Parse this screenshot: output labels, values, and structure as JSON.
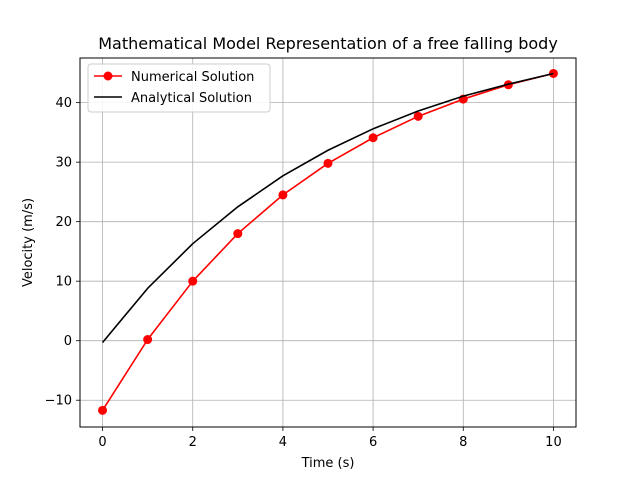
{
  "chart_data": {
    "type": "line",
    "title": "Mathematical Model Representation of a free falling body",
    "xlabel": "Time (s)",
    "ylabel": "Velocity (m/s)",
    "xlim": [
      -0.5,
      10.5
    ],
    "ylim": [
      -14.5,
      47.5
    ],
    "xticks": [
      0,
      2,
      4,
      6,
      8,
      10
    ],
    "yticks": [
      -10,
      0,
      10,
      20,
      30,
      40
    ],
    "xtick_labels": [
      "0",
      "2",
      "4",
      "6",
      "8",
      "10"
    ],
    "ytick_labels": [
      "−10",
      "0",
      "10",
      "20",
      "30",
      "40"
    ],
    "grid": true,
    "legend_position": "top-left",
    "series": [
      {
        "name": "Numerical Solution",
        "color": "#ff0000",
        "marker": "circle",
        "x": [
          0,
          1,
          2,
          3,
          4,
          5,
          6,
          7,
          8,
          9,
          10
        ],
        "y": [
          -11.7,
          0.2,
          10.0,
          18.0,
          24.5,
          29.8,
          34.1,
          37.7,
          40.6,
          43.0,
          44.9
        ]
      },
      {
        "name": "Analytical Solution",
        "color": "#000000",
        "marker": "none",
        "x": [
          0,
          1,
          2,
          3,
          4,
          5,
          6,
          7,
          8,
          9,
          10
        ],
        "y": [
          -0.3,
          8.8,
          16.3,
          22.5,
          27.7,
          32.0,
          35.6,
          38.6,
          41.1,
          43.1,
          44.9
        ]
      }
    ]
  }
}
